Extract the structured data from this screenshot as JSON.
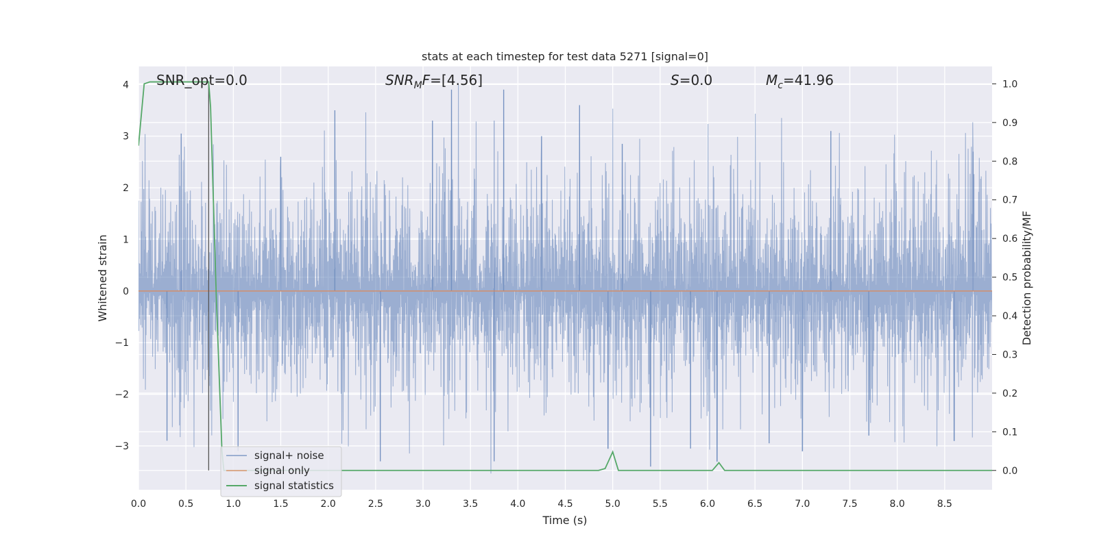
{
  "chart_data": {
    "type": "line",
    "title": "stats at each timestep for test data 5271 [signal=0]",
    "xlabel": "Time (s)",
    "ylabel_left": "Whitened strain",
    "ylabel_right": "Detection probability/MF",
    "xlim": [
      0,
      9
    ],
    "ylim_left": [
      -3.85,
      4.35
    ],
    "ylim_right": [
      -0.05,
      1.045
    ],
    "x_ticks": [
      "0.0",
      "0.5",
      "1.0",
      "1.5",
      "2.0",
      "2.5",
      "3.0",
      "3.5",
      "4.0",
      "4.5",
      "5.0",
      "5.5",
      "6.0",
      "6.5",
      "7.0",
      "7.5",
      "8.0",
      "8.5"
    ],
    "y_ticks_left": [
      "−3",
      "−2",
      "−1",
      "0",
      "1",
      "2",
      "3",
      "4"
    ],
    "y_ticks_right": [
      "0.0",
      "0.1",
      "0.2",
      "0.3",
      "0.4",
      "0.5",
      "0.6",
      "0.7",
      "0.8",
      "0.9",
      "1.0"
    ],
    "grid": true,
    "annotations": [
      {
        "text": "SNR_opt=0.0"
      },
      {
        "text": "SNR_MF=[4.56]",
        "base": "SNR",
        "sub": "M",
        "tail": "F=[4.56]"
      },
      {
        "text": "S=0.0",
        "italic": "S",
        "tail": "=0.0"
      },
      {
        "text": "M_c=41.96",
        "base": "M",
        "sub": "c",
        "tail": "=41.96"
      }
    ],
    "vline_x": 0.74,
    "legend": {
      "placement": "lower-left",
      "entries": [
        "signal+ noise",
        "signal only",
        "signal statistics"
      ]
    },
    "series": [
      {
        "name": "signal+ noise",
        "axis": "left",
        "style": "noise",
        "color": "#4c72b0",
        "approx_envelope": {
          "upper": 2.0,
          "lower": -1.9
        },
        "peaks": [
          {
            "x": 3.3,
            "y": 3.9
          },
          {
            "x": 3.85,
            "y": 3.9
          },
          {
            "x": 4.65,
            "y": 3.6
          },
          {
            "x": 2.07,
            "y": 3.5
          },
          {
            "x": 3.75,
            "y": 3.3
          },
          {
            "x": 3.1,
            "y": 3.3
          },
          {
            "x": 0.45,
            "y": 3.05
          },
          {
            "x": 7.3,
            "y": 3.1
          },
          {
            "x": 4.25,
            "y": 3.0
          },
          {
            "x": 5.1,
            "y": 2.85
          },
          {
            "x": 8.8,
            "y": 2.7
          },
          {
            "x": 1.5,
            "y": 2.6
          }
        ],
        "troughs": [
          {
            "x": 5.4,
            "y": -3.4
          },
          {
            "x": 2.55,
            "y": -3.3
          },
          {
            "x": 3.75,
            "y": -3.3
          },
          {
            "x": 6.1,
            "y": -3.3
          },
          {
            "x": 7.0,
            "y": -3.1
          },
          {
            "x": 5.82,
            "y": -3.05
          },
          {
            "x": 4.95,
            "y": -3.05
          },
          {
            "x": 1.05,
            "y": -3.1
          },
          {
            "x": 8.6,
            "y": -2.9
          },
          {
            "x": 0.3,
            "y": -2.9
          },
          {
            "x": 6.65,
            "y": -2.95
          },
          {
            "x": 7.7,
            "y": -2.8
          }
        ]
      },
      {
        "name": "signal only",
        "axis": "left",
        "color": "#dd8452",
        "x": [
          0,
          9
        ],
        "y": [
          0,
          0
        ]
      },
      {
        "name": "signal statistics",
        "axis": "right",
        "color": "#55a868",
        "x": [
          0,
          0.06,
          0.12,
          0.2,
          0.3,
          0.5,
          0.7,
          0.74,
          0.76,
          0.82,
          0.88,
          0.9,
          4.85,
          4.92,
          5.0,
          5.06,
          6.05,
          6.12,
          6.18,
          9.0
        ],
        "y": [
          0.84,
          1.0,
          1.005,
          1.005,
          1.005,
          1.005,
          1.005,
          1.005,
          0.94,
          0.45,
          0.05,
          0.0,
          0.0,
          0.005,
          0.048,
          0.0,
          0.0,
          0.02,
          0.0,
          0.0
        ]
      }
    ]
  }
}
